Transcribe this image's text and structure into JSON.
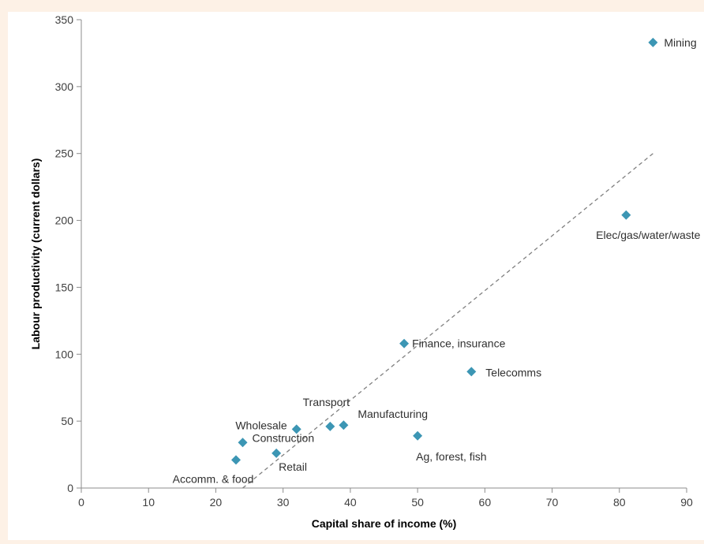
{
  "chart_data": {
    "type": "scatter",
    "title": "",
    "xlabel": "Capital share of income (%)",
    "ylabel": "Labour productivity (current dollars)",
    "xlim": [
      0,
      90
    ],
    "ylim": [
      0,
      350
    ],
    "x_ticks": [
      0,
      10,
      20,
      30,
      40,
      50,
      60,
      70,
      80,
      90
    ],
    "y_ticks": [
      0,
      50,
      100,
      150,
      200,
      250,
      300,
      350
    ],
    "grid": false,
    "marker_color": "#3c96b4",
    "trendline": {
      "style": "dashed",
      "color": "#808080",
      "x": [
        24,
        85
      ],
      "y": [
        0,
        250
      ]
    },
    "points": [
      {
        "label": "Mining",
        "x": 85,
        "y": 333
      },
      {
        "label": "Elec/gas/water/waste",
        "x": 81,
        "y": 204
      },
      {
        "label": "Finance, insurance",
        "x": 48,
        "y": 108
      },
      {
        "label": "Telecomms",
        "x": 58,
        "y": 87
      },
      {
        "label": "Transport",
        "x": 37,
        "y": 46
      },
      {
        "label": "Manufacturing",
        "x": 39,
        "y": 47
      },
      {
        "label": "Wholesale",
        "x": 32,
        "y": 44
      },
      {
        "label": "Construction",
        "x": 24,
        "y": 34
      },
      {
        "label": "Retail",
        "x": 29,
        "y": 26
      },
      {
        "label": "Ag, forest, fish",
        "x": 50,
        "y": 39
      },
      {
        "label": "Accomm. & food",
        "x": 23,
        "y": 21
      }
    ]
  }
}
